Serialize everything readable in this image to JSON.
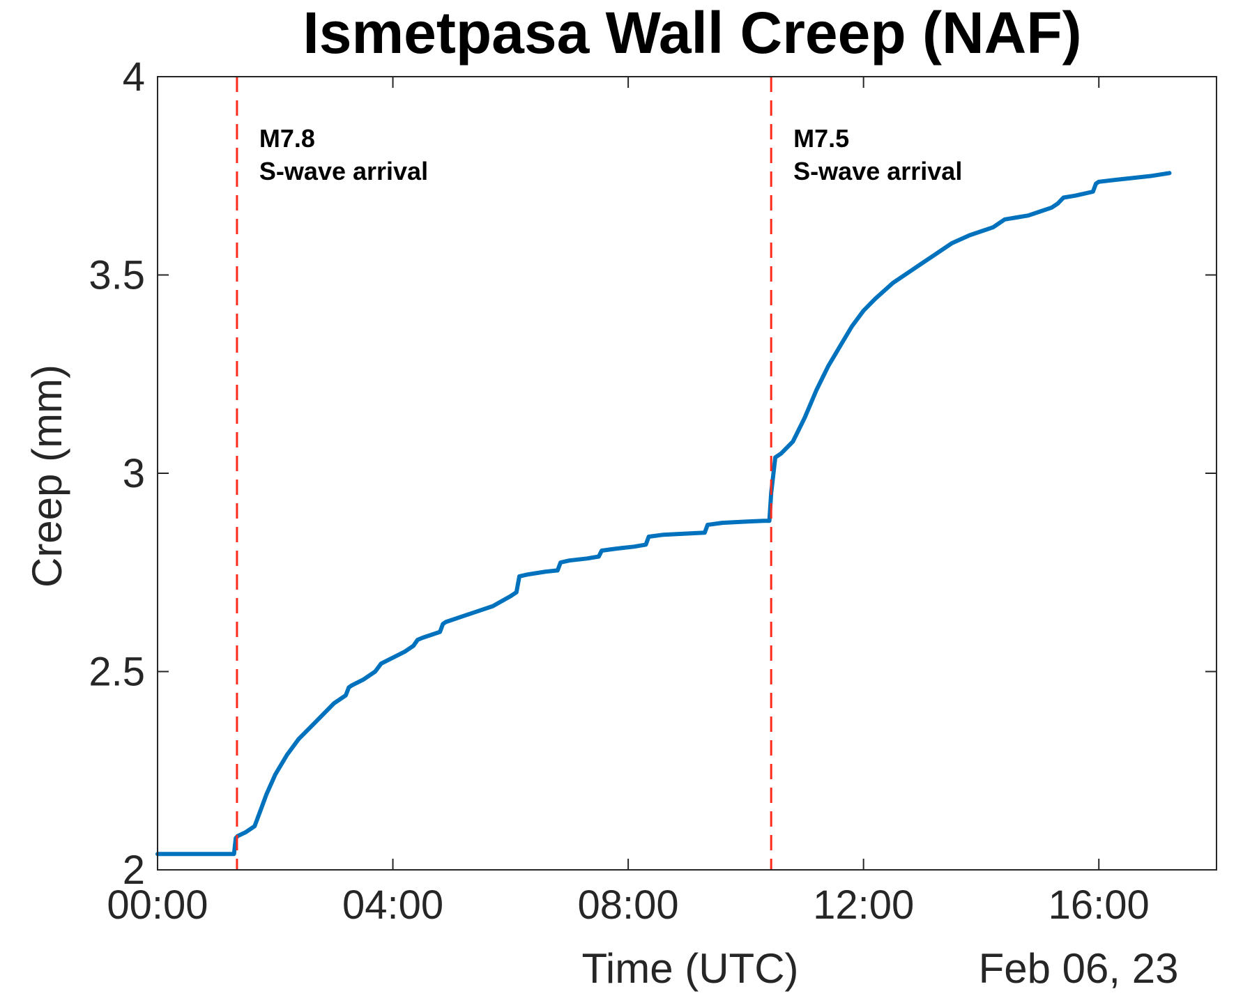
{
  "chart_data": {
    "type": "line",
    "title": "Ismetpasa Wall Creep (NAF)",
    "xlabel": "Time (UTC)",
    "ylabel": "Creep (mm)",
    "date_label": "Feb 06, 23",
    "x_unit": "hours (UTC), Feb 06, 2023",
    "xlim": [
      0,
      18
    ],
    "ylim": [
      2,
      4
    ],
    "x_ticks": [
      0,
      4,
      8,
      12,
      16
    ],
    "x_tick_labels": [
      "00:00",
      "04:00",
      "08:00",
      "12:00",
      "16:00"
    ],
    "y_ticks": [
      2,
      2.5,
      3,
      3.5,
      4
    ],
    "y_tick_labels": [
      "2",
      "2.5",
      "3",
      "3.5",
      "4"
    ],
    "grid": false,
    "series": [
      {
        "color": "#0072BD",
        "x": [
          0,
          0.5,
          1.0,
          1.3,
          1.33,
          1.36,
          1.5,
          1.65,
          1.75,
          1.85,
          2.0,
          2.2,
          2.4,
          2.6,
          2.8,
          3.0,
          3.2,
          3.25,
          3.3,
          3.5,
          3.7,
          3.8,
          4.0,
          4.2,
          4.35,
          4.42,
          4.5,
          4.8,
          4.85,
          4.9,
          5.2,
          5.5,
          5.7,
          6.0,
          6.1,
          6.15,
          6.3,
          6.6,
          6.8,
          6.85,
          7.0,
          7.3,
          7.5,
          7.55,
          7.8,
          8.1,
          8.3,
          8.35,
          8.6,
          9.0,
          9.3,
          9.35,
          9.6,
          10.0,
          10.3,
          10.35,
          10.4,
          10.43,
          10.5,
          10.6,
          10.8,
          11.0,
          11.2,
          11.4,
          11.6,
          11.8,
          12.0,
          12.2,
          12.5,
          12.8,
          13.0,
          13.2,
          13.5,
          13.8,
          14.0,
          14.2,
          14.3,
          14.4,
          14.6,
          14.8,
          15.0,
          15.2,
          15.3,
          15.4,
          15.6,
          15.9,
          15.95,
          16.0,
          16.3,
          16.6,
          16.9,
          17.2
        ],
        "y": [
          2.04,
          2.04,
          2.04,
          2.04,
          2.08,
          2.085,
          2.095,
          2.11,
          2.15,
          2.19,
          2.24,
          2.29,
          2.33,
          2.36,
          2.39,
          2.42,
          2.44,
          2.46,
          2.465,
          2.48,
          2.5,
          2.52,
          2.535,
          2.55,
          2.565,
          2.58,
          2.585,
          2.6,
          2.62,
          2.625,
          2.64,
          2.655,
          2.665,
          2.69,
          2.7,
          2.74,
          2.745,
          2.752,
          2.755,
          2.775,
          2.78,
          2.785,
          2.79,
          2.805,
          2.81,
          2.815,
          2.82,
          2.84,
          2.845,
          2.848,
          2.85,
          2.87,
          2.875,
          2.878,
          2.88,
          2.88,
          2.88,
          2.95,
          3.04,
          3.05,
          3.08,
          3.14,
          3.21,
          3.27,
          3.32,
          3.37,
          3.41,
          3.44,
          3.48,
          3.51,
          3.53,
          3.55,
          3.58,
          3.6,
          3.61,
          3.62,
          3.63,
          3.64,
          3.645,
          3.65,
          3.66,
          3.67,
          3.68,
          3.695,
          3.7,
          3.71,
          3.73,
          3.735,
          3.74,
          3.745,
          3.75,
          3.757
        ]
      }
    ],
    "vlines": [
      {
        "x": 1.35,
        "label_line1": "M7.8",
        "label_line2": "S-wave arrival",
        "color": "#FF2A1A"
      },
      {
        "x": 10.43,
        "label_line1": "M7.5",
        "label_line2": "S-wave arrival",
        "color": "#FF2A1A"
      }
    ]
  }
}
